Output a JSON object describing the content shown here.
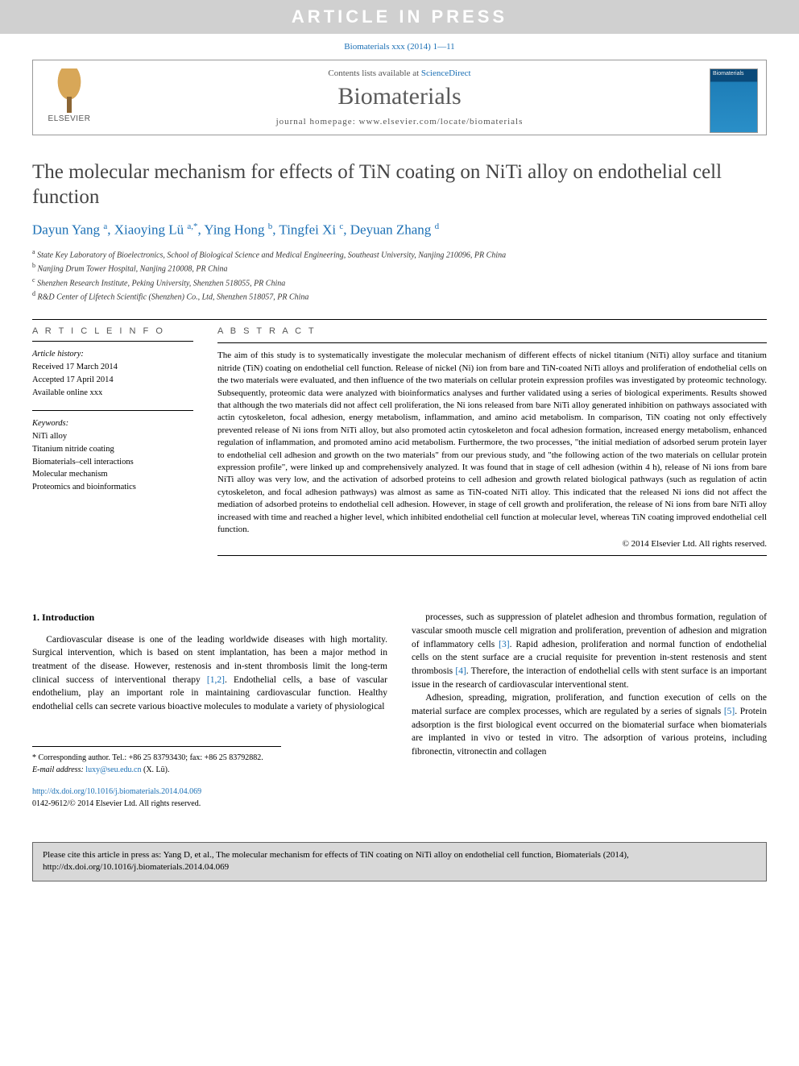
{
  "banner": "ARTICLE IN PRESS",
  "journal_ref": "Biomaterials xxx (2014) 1—11",
  "header": {
    "contents_prefix": "Contents lists available at ",
    "contents_link": "ScienceDirect",
    "journal_name": "Biomaterials",
    "homepage_prefix": "journal homepage: ",
    "homepage": "www.elsevier.com/locate/biomaterials",
    "publisher": "ELSEVIER",
    "cover_label": "Biomaterials"
  },
  "article": {
    "title": "The molecular mechanism for effects of TiN coating on NiTi alloy on endothelial cell function",
    "authors_html": "Dayun Yang <sup class='sup'>a</sup>, Xiaoying Lü <sup class='sup'>a,*</sup>, Ying Hong <sup class='sup'>b</sup>, Tingfei Xi <sup class='sup'>c</sup>, Deyuan Zhang <sup class='sup'>d</sup>",
    "affiliations": [
      {
        "sup": "a",
        "text": "State Key Laboratory of Bioelectronics, School of Biological Science and Medical Engineering, Southeast University, Nanjing 210096, PR China"
      },
      {
        "sup": "b",
        "text": "Nanjing Drum Tower Hospital, Nanjing 210008, PR China"
      },
      {
        "sup": "c",
        "text": "Shenzhen Research Institute, Peking University, Shenzhen 518055, PR China"
      },
      {
        "sup": "d",
        "text": "R&D Center of Lifetech Scientific (Shenzhen) Co., Ltd, Shenzhen 518057, PR China"
      }
    ]
  },
  "info": {
    "header": "A R T I C L E   I N F O",
    "history_label": "Article history:",
    "received": "Received 17 March 2014",
    "accepted": "Accepted 17 April 2014",
    "available": "Available online xxx",
    "keywords_label": "Keywords:",
    "keywords": [
      "NiTi alloy",
      "Titanium nitride coating",
      "Biomaterials–cell interactions",
      "Molecular mechanism",
      "Proteomics and bioinformatics"
    ]
  },
  "abstract": {
    "header": "A B S T R A C T",
    "text": "The aim of this study is to systematically investigate the molecular mechanism of different effects of nickel titanium (NiTi) alloy surface and titanium nitride (TiN) coating on endothelial cell function. Release of nickel (Ni) ion from bare and TiN-coated NiTi alloys and proliferation of endothelial cells on the two materials were evaluated, and then influence of the two materials on cellular protein expression profiles was investigated by proteomic technology. Subsequently, proteomic data were analyzed with bioinformatics analyses and further validated using a series of biological experiments. Results showed that although the two materials did not affect cell proliferation, the Ni ions released from bare NiTi alloy generated inhibition on pathways associated with actin cytoskeleton, focal adhesion, energy metabolism, inflammation, and amino acid metabolism. In comparison, TiN coating not only effectively prevented release of Ni ions from NiTi alloy, but also promoted actin cytoskeleton and focal adhesion formation, increased energy metabolism, enhanced regulation of inflammation, and promoted amino acid metabolism. Furthermore, the two processes, \"the initial mediation of adsorbed serum protein layer to endothelial cell adhesion and growth on the two materials\" from our previous study, and \"the following action of the two materials on cellular protein expression profile\", were linked up and comprehensively analyzed. It was found that in stage of cell adhesion (within 4 h), release of Ni ions from bare NiTi alloy was very low, and the activation of adsorbed proteins to cell adhesion and growth related biological pathways (such as regulation of actin cytoskeleton, and focal adhesion pathways) was almost as same as TiN-coated NiTi alloy. This indicated that the released Ni ions did not affect the mediation of adsorbed proteins to endothelial cell adhesion. However, in stage of cell growth and proliferation, the release of Ni ions from bare NiTi alloy increased with time and reached a higher level, which inhibited endothelial cell function at molecular level, whereas TiN coating improved endothelial cell function.",
    "copyright": "© 2014 Elsevier Ltd. All rights reserved."
  },
  "body": {
    "intro_heading": "1.  Introduction",
    "col1_p1": "Cardiovascular disease is one of the leading worldwide diseases with high mortality. Surgical intervention, which is based on stent implantation, has been a major method in treatment of the disease. However, restenosis and in-stent thrombosis limit the long-term clinical success of interventional therapy [1,2]. Endothelial cells, a base of vascular endothelium, play an important role in maintaining cardiovascular function. Healthy endothelial cells can secrete various bioactive molecules to modulate a variety of physiological",
    "col2_p1": "processes, such as suppression of platelet adhesion and thrombus formation, regulation of vascular smooth muscle cell migration and proliferation, prevention of adhesion and migration of inflammatory cells [3]. Rapid adhesion, proliferation and normal function of endothelial cells on the stent surface are a crucial requisite for prevention in-stent restenosis and stent thrombosis [4]. Therefore, the interaction of endothelial cells with stent surface is an important issue in the research of cardiovascular interventional stent.",
    "col2_p2": "Adhesion, spreading, migration, proliferation, and function execution of cells on the material surface are complex processes, which are regulated by a series of signals [5]. Protein adsorption is the first biological event occurred on the biomaterial surface when biomaterials are implanted in vivo or tested in vitro. The adsorption of various proteins, including fibronectin, vitronectin and collagen",
    "refs": {
      "r12": "[1,2]",
      "r3": "[3]",
      "r4": "[4]",
      "r5": "[5]"
    }
  },
  "corresponding": {
    "line1": "* Corresponding author. Tel.: +86 25 83793430; fax: +86 25 83792882.",
    "email_label": "E-mail address: ",
    "email": "luxy@seu.edu.cn",
    "email_suffix": " (X. Lü)."
  },
  "doi": {
    "url": "http://dx.doi.org/10.1016/j.biomaterials.2014.04.069",
    "issn": "0142-9612/© 2014 Elsevier Ltd. All rights reserved."
  },
  "cite_box": "Please cite this article in press as: Yang D, et al., The molecular mechanism for effects of TiN coating on NiTi alloy on endothelial cell function, Biomaterials (2014), http://dx.doi.org/10.1016/j.biomaterials.2014.04.069"
}
